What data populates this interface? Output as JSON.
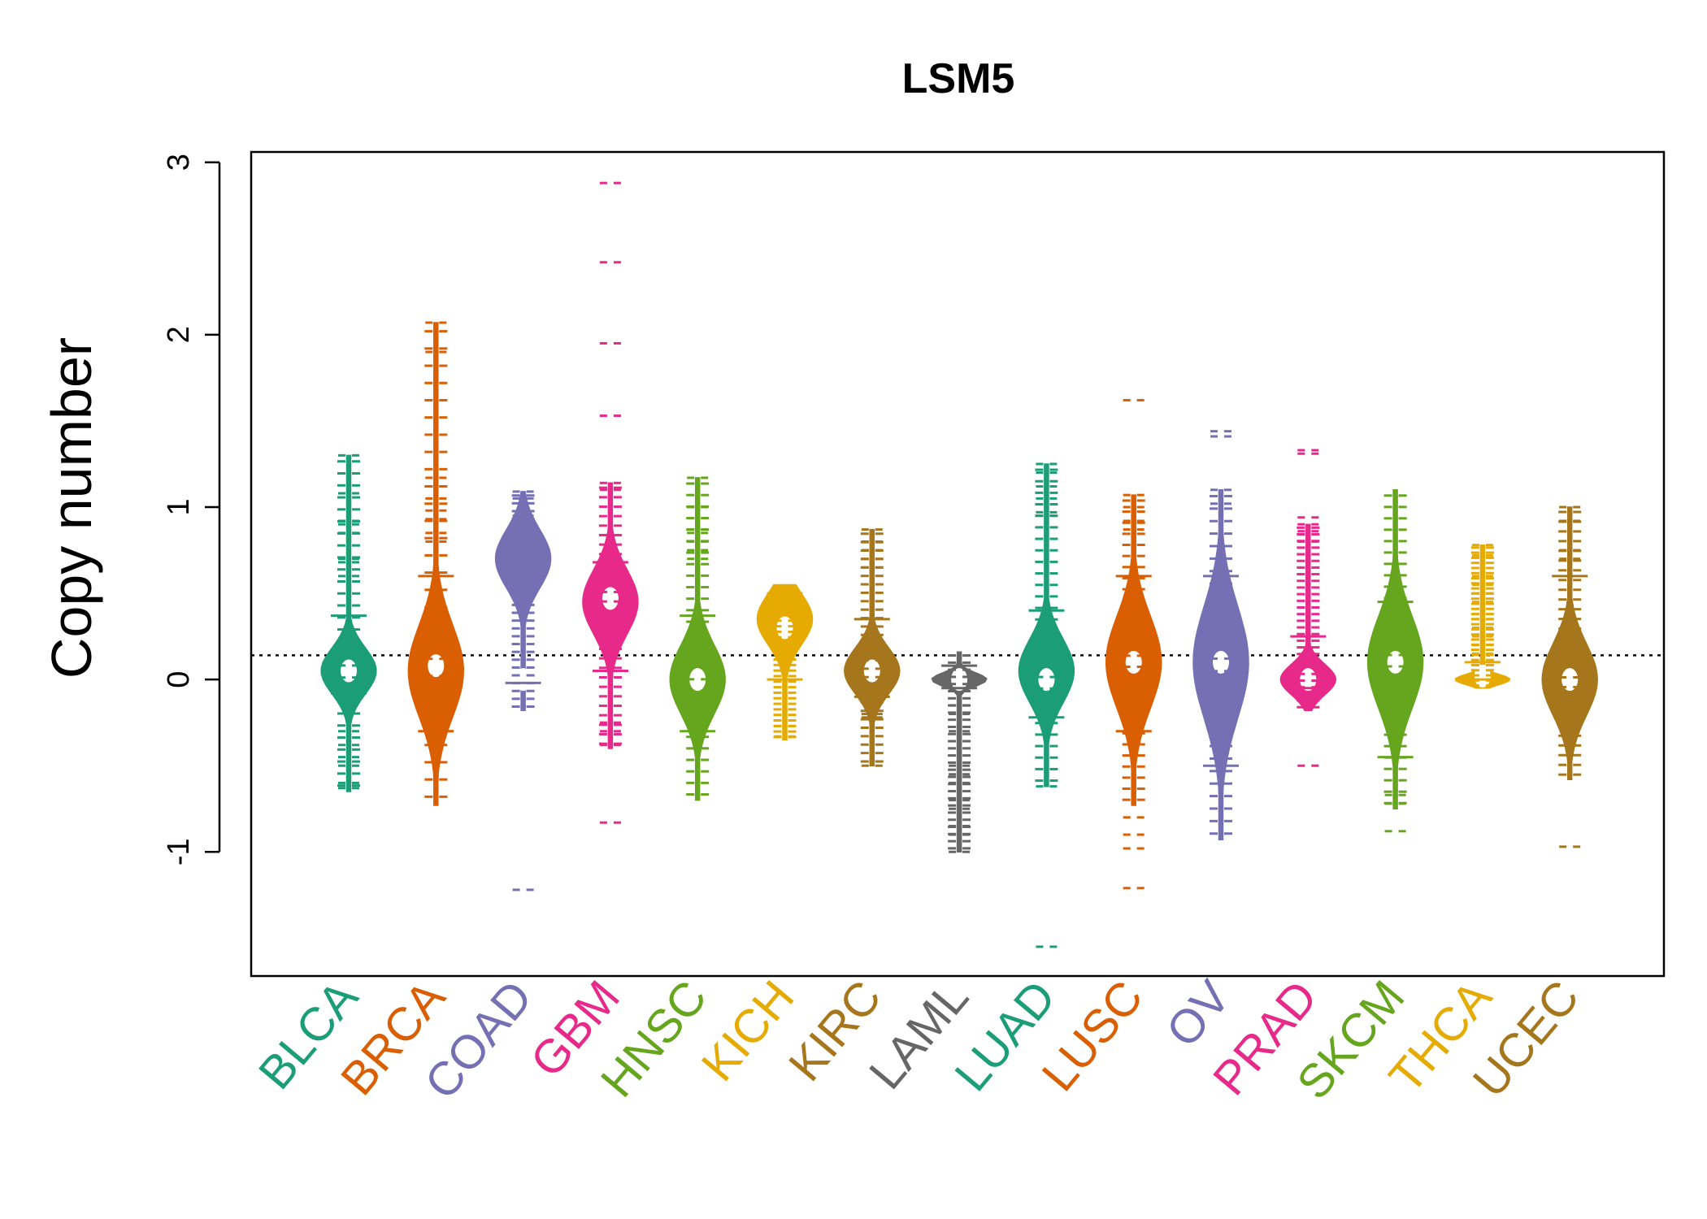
{
  "chart_data": {
    "type": "violin",
    "title": "LSM5",
    "xlabel": "",
    "ylabel": "Copy number",
    "ylim": [
      -1.72,
      3.06
    ],
    "yticks": [
      -1,
      0,
      1,
      2,
      3
    ],
    "ytick_labels": [
      "-1",
      "0",
      "1",
      "2",
      "3"
    ],
    "reference_line": 0.14,
    "grid": false,
    "categories": [
      "BLCA",
      "BRCA",
      "COAD",
      "GBM",
      "HNSC",
      "KICH",
      "KIRC",
      "LAML",
      "LUAD",
      "LUSC",
      "OV",
      "PRAD",
      "SKCM",
      "THCA",
      "UCEC"
    ],
    "colors": [
      "#1b9e77",
      "#d95f02",
      "#7570b3",
      "#e7298a",
      "#66a61e",
      "#e6ab02",
      "#a6761d",
      "#666666",
      "#1b9e77",
      "#d95f02",
      "#7570b3",
      "#e7298a",
      "#66a61e",
      "#e6ab02",
      "#a6761d"
    ],
    "series": [
      {
        "name": "BLCA",
        "min": -0.65,
        "q1": -0.08,
        "median": 0.05,
        "q3": 0.37,
        "max": 1.3,
        "peak": 0.05,
        "outliers": [
          1.3,
          1.08,
          0.92,
          0.9,
          0.85,
          0.7,
          0.68,
          0.6,
          -0.3,
          -0.38,
          -0.45,
          -0.5,
          -0.6,
          -0.63
        ]
      },
      {
        "name": "BRCA",
        "min": -0.73,
        "q1": -0.3,
        "median": 0.08,
        "q3": 0.6,
        "max": 2.07,
        "peak": 0.05,
        "outliers": [
          2.07,
          1.9,
          1.17,
          1.12,
          1.05,
          0.98,
          0.93,
          0.85,
          0.8
        ]
      },
      {
        "name": "COAD",
        "min": -0.18,
        "q1": -0.02,
        "median": 0.0,
        "q3": 0.55,
        "max": 1.09,
        "peak": 0.7,
        "outliers": [
          1.09,
          1.05,
          0.95,
          0.9,
          -1.22
        ]
      },
      {
        "name": "GBM",
        "min": -0.4,
        "q1": 0.05,
        "median": 0.47,
        "q3": 0.68,
        "max": 1.14,
        "peak": 0.45,
        "outliers": [
          2.88,
          2.42,
          1.95,
          1.53,
          1.14,
          1.1,
          -0.25,
          -0.3,
          -0.38,
          -0.83
        ]
      },
      {
        "name": "HNSC",
        "min": -0.7,
        "q1": -0.3,
        "median": 0.0,
        "q3": 0.37,
        "max": 1.17,
        "peak": 0.0,
        "outliers": [
          1.17,
          1.0,
          0.87,
          0.85,
          0.8,
          0.75,
          0.7
        ]
      },
      {
        "name": "KICH",
        "min": -0.35,
        "q1": 0.0,
        "median": 0.3,
        "q3": 0.5,
        "max": 0.55,
        "peak": 0.35,
        "outliers": [
          -0.27,
          -0.33
        ]
      },
      {
        "name": "KIRC",
        "min": -0.5,
        "q1": -0.1,
        "median": 0.05,
        "q3": 0.35,
        "max": 0.87,
        "peak": 0.05,
        "outliers": [
          0.87,
          0.8,
          0.75,
          0.7,
          0.65,
          -0.2,
          -0.22,
          -0.5
        ]
      },
      {
        "name": "LAML",
        "min": -1.0,
        "q1": -0.05,
        "median": 0.0,
        "q3": 0.08,
        "max": 0.16,
        "peak": 0.0,
        "outliers": [
          -0.15,
          -0.2,
          -0.3,
          -0.5,
          -0.55,
          -0.6,
          -0.7,
          -0.75,
          -0.85,
          -0.9,
          -1.0
        ]
      },
      {
        "name": "LUAD",
        "min": -0.62,
        "q1": -0.22,
        "median": 0.0,
        "q3": 0.4,
        "max": 1.25,
        "peak": 0.05,
        "outliers": [
          1.25,
          1.2,
          1.12,
          1.05,
          0.97,
          0.95,
          -0.62,
          -1.55
        ]
      },
      {
        "name": "LUSC",
        "min": -0.73,
        "q1": -0.3,
        "median": 0.1,
        "q3": 0.6,
        "max": 1.07,
        "peak": 0.1,
        "outliers": [
          1.62,
          1.07,
          1.0,
          0.92,
          0.87,
          -0.8,
          -0.9,
          -0.98,
          -1.21
        ]
      },
      {
        "name": "OV",
        "min": -0.93,
        "q1": -0.5,
        "median": 0.1,
        "q3": 0.6,
        "max": 1.1,
        "peak": 0.1,
        "outliers": [
          1.44,
          1.41,
          1.1,
          1.02
        ]
      },
      {
        "name": "PRAD",
        "min": -0.18,
        "q1": -0.05,
        "median": 0.0,
        "q3": 0.25,
        "max": 0.9,
        "peak": 0.0,
        "outliers": [
          1.33,
          1.31,
          0.94,
          0.9,
          0.86,
          0.8,
          -0.5
        ]
      },
      {
        "name": "SKCM",
        "min": -0.75,
        "q1": -0.45,
        "median": 0.1,
        "q3": 0.45,
        "max": 1.1,
        "peak": 0.1,
        "outliers": [
          -0.67,
          -0.72,
          -0.88
        ]
      },
      {
        "name": "THCA",
        "min": -0.05,
        "q1": 0.0,
        "median": 0.02,
        "q3": 0.1,
        "max": 0.78,
        "peak": 0.0,
        "outliers": [
          0.78,
          0.72,
          0.6,
          0.55,
          0.5,
          0.45,
          0.35,
          0.3,
          0.25,
          0.2,
          0.15
        ]
      },
      {
        "name": "UCEC",
        "min": -0.58,
        "q1": -0.1,
        "median": 0.0,
        "q3": 0.6,
        "max": 1.0,
        "peak": 0.0,
        "outliers": [
          1.0,
          0.92,
          0.75,
          0.7,
          -0.97
        ]
      }
    ]
  }
}
